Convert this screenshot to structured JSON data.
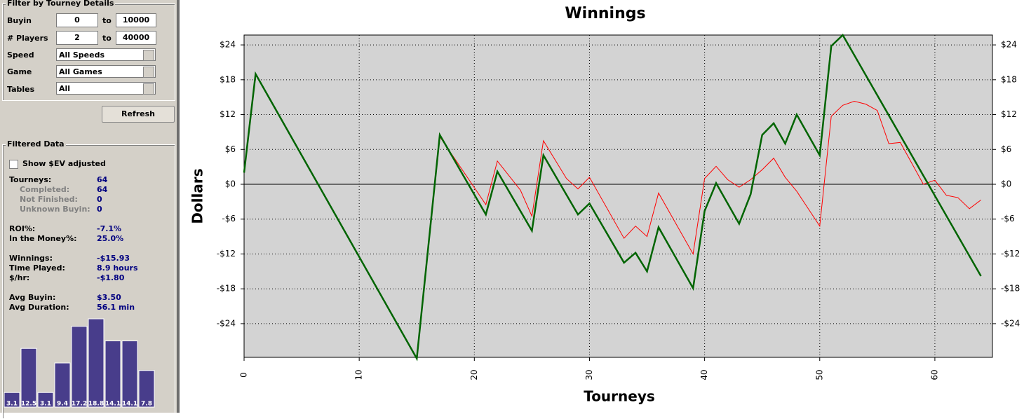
{
  "filter": {
    "title": "Filter by Tourney Details",
    "buyin": {
      "label": "Buyin",
      "min": "0",
      "to": "to",
      "max": "10000"
    },
    "players": {
      "label": "# Players",
      "min": "2",
      "to": "to",
      "max": "40000"
    },
    "selects": [
      {
        "label": "Speed",
        "value": "All Speeds"
      },
      {
        "label": "Game",
        "value": "All Games"
      },
      {
        "label": "Tables",
        "value": "All"
      }
    ],
    "refresh": "Refresh"
  },
  "filtered": {
    "title": "Filtered Data",
    "checkbox": "Show $EV adjusted",
    "stats": [
      {
        "label": "Tourneys:",
        "value": "64"
      },
      {
        "label": "Completed:",
        "value": "64"
      },
      {
        "label": "Not Finished:",
        "value": "0"
      },
      {
        "label": "Unknown Buyin:",
        "value": "0"
      },
      {
        "label": "ROI%:",
        "value": "-7.1%"
      },
      {
        "label": "In the Money%:",
        "value": "25.0%"
      },
      {
        "label": "Winnings:",
        "value": "-$15.93"
      },
      {
        "label": "Time Played:",
        "value": "8.9 hours"
      },
      {
        "label": "$/hr:",
        "value": "-$1.80"
      },
      {
        "label": "Avg Buyin:",
        "value": "$3.50"
      },
      {
        "label": "Avg Duration:",
        "value": "56.1 min"
      }
    ]
  },
  "chart_data": [
    {
      "type": "line",
      "title": "Winnings",
      "x_label": "Tourneys",
      "y_label": "Dollars",
      "xlim": [
        0,
        65
      ],
      "ylim": [
        -29.8,
        25.7
      ],
      "xticks": [
        0,
        10,
        20,
        30,
        40,
        50,
        60
      ],
      "yticks": [
        {
          "value": -24,
          "label": "-$24"
        },
        {
          "value": -18,
          "label": "-$18"
        },
        {
          "value": -12,
          "label": "-$12"
        },
        {
          "value": -6,
          "label": "-$6"
        },
        {
          "value": 0,
          "label": "$0"
        },
        {
          "value": 6,
          "label": "$6"
        },
        {
          "value": 12,
          "label": "$12"
        },
        {
          "value": 18,
          "label": "$18"
        },
        {
          "value": 24,
          "label": "$24"
        }
      ],
      "grid": true,
      "series": [
        {
          "color": "#ff0000",
          "x": [
            0,
            1,
            15,
            17,
            21,
            22,
            24,
            25,
            26,
            28,
            29,
            30,
            33,
            34,
            35,
            36,
            39,
            40,
            41,
            42,
            43,
            44,
            45,
            46,
            47,
            48,
            50,
            51,
            52,
            53,
            54,
            55,
            56,
            57,
            59,
            60,
            61,
            62,
            63,
            64
          ],
          "values": [
            2,
            19,
            -30,
            8.2,
            -3.5,
            4,
            -1,
            -5.5,
            7.5,
            1,
            -0.8,
            1.2,
            -9.3,
            -7.2,
            -9,
            -1.5,
            -12,
            1,
            3.1,
            0.8,
            -0.5,
            0.8,
            2.5,
            4.5,
            1.2,
            -1.2,
            -7.2,
            11.7,
            13.6,
            14.3,
            13.8,
            12.7,
            7,
            7.2,
            0,
            0.7,
            -1.9,
            -2.3,
            -4.2,
            -2.7
          ]
        },
        {
          "color": "#006400",
          "x": [
            0,
            1,
            15,
            17,
            21,
            22,
            25,
            26,
            29,
            30,
            33,
            34,
            35,
            36,
            39,
            40,
            41,
            43,
            44,
            45,
            46,
            47,
            48,
            50,
            51,
            52,
            64
          ],
          "values": [
            2,
            19,
            -30,
            8.5,
            -5.2,
            2.2,
            -8,
            5,
            -5.2,
            -3.3,
            -13.5,
            -11.8,
            -15,
            -7.4,
            -17.9,
            -4.6,
            0.2,
            -6.8,
            -1.7,
            8.5,
            10.5,
            7,
            12,
            5,
            23.8,
            25.7,
            -15.8
          ]
        }
      ]
    },
    {
      "type": "bar",
      "color": "#483d8b",
      "values": [
        3.1,
        12.5,
        3.1,
        9.4,
        17.2,
        18.8,
        14.1,
        14.1,
        7.8
      ]
    }
  ]
}
